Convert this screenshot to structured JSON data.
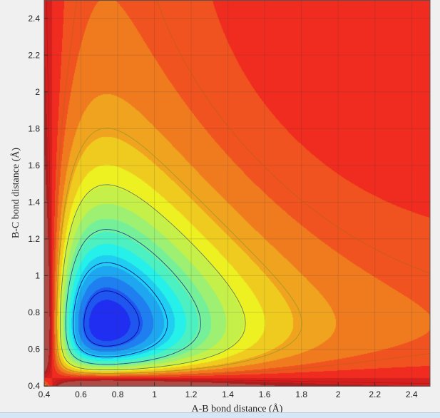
{
  "chart_data": {
    "type": "heatmap",
    "subtype": "filled-contour",
    "title": "",
    "xlabel": "A-B bond distance (Å)",
    "ylabel": "B-C bond distance (Å)",
    "xlim": [
      0.4,
      2.5
    ],
    "ylim": [
      0.4,
      2.5
    ],
    "x_ticks": [
      "0.4",
      "0.6",
      "0.8",
      "1",
      "1.2",
      "1.4",
      "1.6",
      "1.8",
      "2",
      "2.2",
      "2.4"
    ],
    "y_ticks": [
      "0.4",
      "0.6",
      "0.8",
      "1",
      "1.2",
      "1.4",
      "1.6",
      "1.8",
      "2",
      "2.2",
      "2.4"
    ],
    "x_tick_values": [
      0.4,
      0.6,
      0.8,
      1.0,
      1.2,
      1.4,
      1.6,
      1.8,
      2.0,
      2.2,
      2.4
    ],
    "y_tick_values": [
      0.4,
      0.6,
      0.8,
      1.0,
      1.2,
      1.4,
      1.6,
      1.8,
      2.0,
      2.2,
      2.4
    ],
    "grid": true,
    "colormap": "jet",
    "description_values": {
      "minimum_valleys": [
        {
          "along": "x",
          "x_range": [
            1.05,
            2.5
          ],
          "y_center": 0.8
        },
        {
          "along": "y",
          "y_range": [
            1.05,
            2.5
          ],
          "x_center": 0.8
        }
      ],
      "plateau_region": {
        "x_min": 1.9,
        "y_min": 1.9
      }
    },
    "colors": {
      "low": "#3a4fc8",
      "high": "#b04a44",
      "contour_line": "#00008b"
    }
  }
}
